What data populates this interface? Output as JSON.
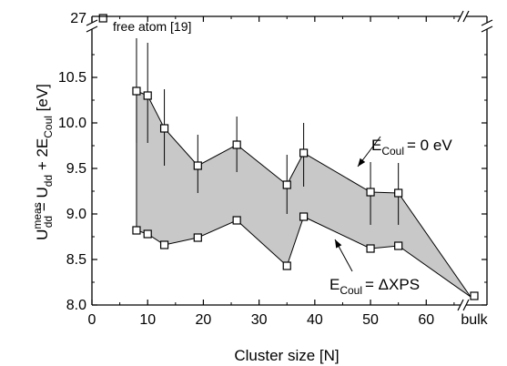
{
  "chart_data": {
    "type": "line",
    "title": "",
    "xlabel": "Cluster size [N]",
    "ylabel": {
      "main": "U",
      "main_sup": "meas",
      "main_sub": "dd",
      "eq1": " = U",
      "eq1_sub": "dd",
      "eq2": " + 2E",
      "eq2_sub": "Coul",
      "unit": " [eV]"
    },
    "xlim": [
      0,
      66
    ],
    "ylim": [
      8.0,
      10.9
    ],
    "x_ticks": [
      "0",
      "10",
      "20",
      "30",
      "40",
      "50",
      "60"
    ],
    "x_tick_values": [
      0,
      10,
      20,
      30,
      40,
      50,
      60
    ],
    "x_extra_tick": "bulk",
    "y_ticks": [
      "8.0",
      "8.5",
      "9.0",
      "9.5",
      "10.0",
      "10.5"
    ],
    "y_tick_values": [
      8.0,
      8.5,
      9.0,
      9.5,
      10.0,
      10.5
    ],
    "y_break_tick": "27",
    "grid": false,
    "fill_color": "#c8c8c8",
    "series": [
      {
        "annotation": {
          "prefix": "E",
          "sub": "Coul",
          "suffix": "= 0 eV"
        },
        "x": [
          8,
          10,
          13,
          19,
          26,
          35,
          38,
          50,
          55
        ],
        "y": [
          10.35,
          10.3,
          9.94,
          9.53,
          9.76,
          9.32,
          9.67,
          9.24,
          9.23
        ],
        "err_lo": [
          9.78,
          9.78,
          9.53,
          9.23,
          9.46,
          9.0,
          9.3,
          8.88,
          8.88
        ],
        "err_hi": [
          10.93,
          10.88,
          10.37,
          9.87,
          10.07,
          9.65,
          10.0,
          9.57,
          9.56
        ]
      },
      {
        "annotation": {
          "prefix": "E",
          "sub": "Coul",
          "suffix": "= ΔXPS"
        },
        "x": [
          8,
          10,
          13,
          19,
          26,
          35,
          38,
          50,
          55
        ],
        "y": [
          8.82,
          8.78,
          8.66,
          8.74,
          8.93,
          8.43,
          8.97,
          8.62,
          8.65
        ]
      }
    ],
    "bulk_point": {
      "x_label": "bulk",
      "y": 8.1
    },
    "free_atom": {
      "label": "free atom [19]",
      "y": 27
    }
  }
}
